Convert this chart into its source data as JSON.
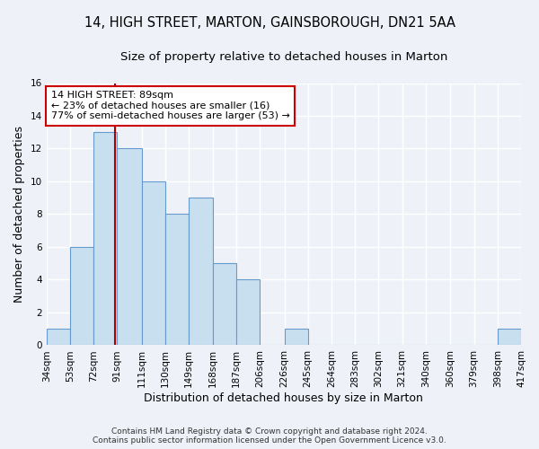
{
  "title": "14, HIGH STREET, MARTON, GAINSBOROUGH, DN21 5AA",
  "subtitle": "Size of property relative to detached houses in Marton",
  "xlabel": "Distribution of detached houses by size in Marton",
  "ylabel": "Number of detached properties",
  "footer_line1": "Contains HM Land Registry data © Crown copyright and database right 2024.",
  "footer_line2": "Contains public sector information licensed under the Open Government Licence v3.0.",
  "bin_edges": [
    34,
    53,
    72,
    91,
    111,
    130,
    149,
    168,
    187,
    206,
    226,
    245,
    264,
    283,
    302,
    321,
    340,
    360,
    379,
    398,
    417
  ],
  "bin_labels": [
    "34sqm",
    "53sqm",
    "72sqm",
    "91sqm",
    "111sqm",
    "130sqm",
    "149sqm",
    "168sqm",
    "187sqm",
    "206sqm",
    "226sqm",
    "245sqm",
    "264sqm",
    "283sqm",
    "302sqm",
    "321sqm",
    "340sqm",
    "360sqm",
    "379sqm",
    "398sqm",
    "417sqm"
  ],
  "bar_values": [
    1,
    6,
    13,
    12,
    10,
    8,
    9,
    5,
    4,
    0,
    1,
    0,
    0,
    0,
    0,
    0,
    0,
    0,
    0,
    1
  ],
  "bar_face_color": "#c8dff0",
  "bar_edge_color": "#6699cc",
  "property_label": "14 HIGH STREET: 89sqm",
  "annotation_line1": "← 23% of detached houses are smaller (16)",
  "annotation_line2": "77% of semi-detached houses are larger (53) →",
  "vline_color": "#aa0000",
  "vline_x": 89,
  "ylim": [
    0,
    16
  ],
  "yticks": [
    0,
    2,
    4,
    6,
    8,
    10,
    12,
    14,
    16
  ],
  "background_color": "#eef2f8",
  "plot_background": "#eef2f8",
  "grid_color": "#ffffff",
  "annotation_box_color": "#cc0000",
  "title_fontsize": 10.5,
  "subtitle_fontsize": 9.5,
  "axis_label_fontsize": 9,
  "tick_fontsize": 7.5,
  "footer_fontsize": 6.5
}
